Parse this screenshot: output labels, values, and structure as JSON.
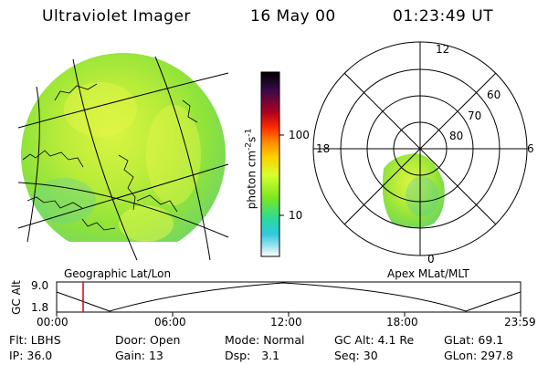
{
  "header": {
    "title": "Ultraviolet Imager",
    "date": "16 May 00",
    "time": "01:23:49 UT"
  },
  "geo_panel": {
    "label": "Geographic Lat/Lon"
  },
  "colorbar": {
    "unit": "photon cm",
    "unit_sup1": "-2",
    "unit_mid": "s",
    "unit_sup2": "-1",
    "ticks": [
      "100",
      "10"
    ],
    "colors": [
      "#000000",
      "#3a0a4a",
      "#b00020",
      "#ff2a00",
      "#ff8a00",
      "#ffd000",
      "#d8ff30",
      "#7be81e",
      "#29d9a0",
      "#33c8e0",
      "#a6e6ef",
      "#ffffff"
    ]
  },
  "polar_panel": {
    "label": "Apex MLat/MLT",
    "mlt_labels": {
      "top": "12",
      "left": "18",
      "right": "6",
      "bottom": "0"
    },
    "lat_labels": [
      "60",
      "70",
      "80"
    ]
  },
  "altitude_plot": {
    "ylabel": "GC Alt",
    "yticks": [
      "9.0",
      "1.8"
    ],
    "xticks": [
      "00:00",
      "06:00",
      "12:00",
      "18:00",
      "23:59"
    ],
    "current_time_marker": "01:23:49",
    "marker_color": "#dd0000"
  },
  "info": {
    "row1": [
      {
        "key": "Flt:",
        "value": "LBHS"
      },
      {
        "key": "Door:",
        "value": "Open"
      },
      {
        "key": "Mode:",
        "value": "Normal"
      },
      {
        "key": "GC Alt:",
        "value": "4.1 Re"
      },
      {
        "key": "GLat:",
        "value": "69.1"
      }
    ],
    "row2": [
      {
        "key": "IP:",
        "value": "36.0"
      },
      {
        "key": "Gain:",
        "value": "13"
      },
      {
        "key": "Dsp:",
        "value": "3.1"
      },
      {
        "key": "Seq:",
        "value": "30"
      },
      {
        "key": "GLon:",
        "value": "297.8"
      }
    ]
  }
}
